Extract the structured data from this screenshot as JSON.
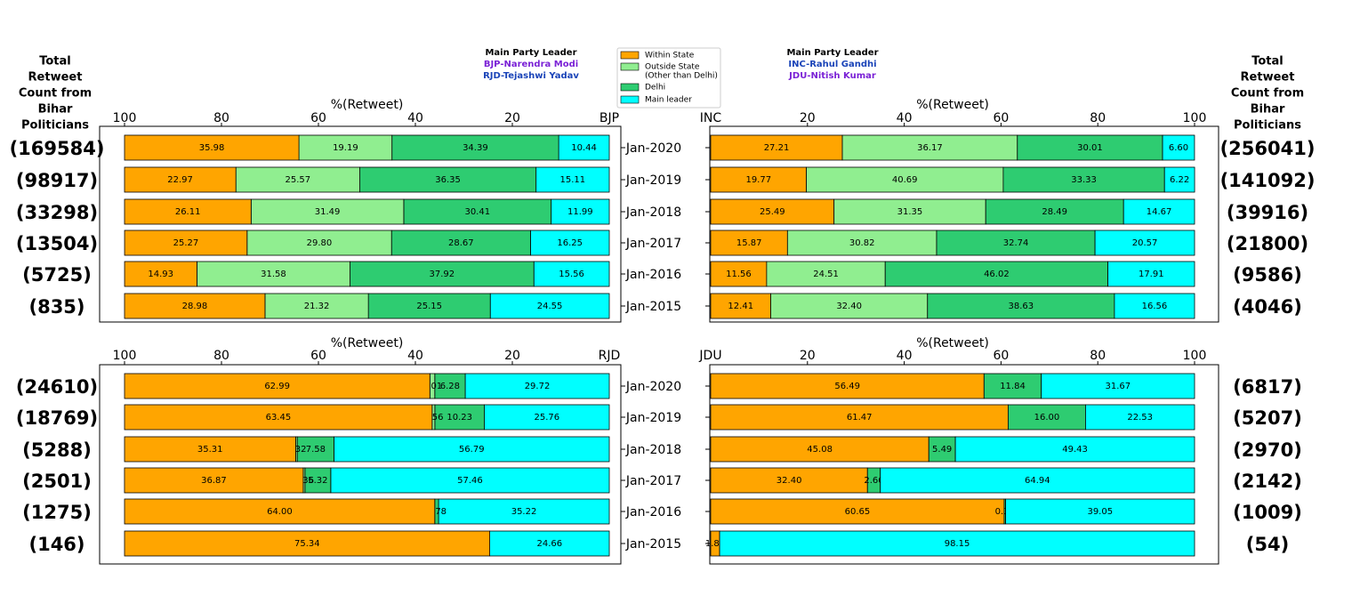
{
  "header": {
    "left_title": [
      "Total",
      "Retweet",
      "Count from",
      "Bihar",
      "Politicians"
    ],
    "right_title": [
      "Total",
      "Retweet",
      "Count from",
      "Bihar",
      "Politicians"
    ],
    "left_leader": {
      "heading": "Main Party Leader",
      "lines": [
        {
          "text": "BJP-Narendra Modi",
          "color": "#7b22d6"
        },
        {
          "text": "RJD-Tejashwi Yadav",
          "color": "#1a44b8"
        }
      ]
    },
    "right_leader": {
      "heading": "Main Party Leader",
      "lines": [
        {
          "text": "INC-Rahul Gandhi",
          "color": "#1a44b8"
        },
        {
          "text": "JDU-Nitish Kumar",
          "color": "#7b22d6"
        }
      ]
    }
  },
  "legend": [
    {
      "label": "Within State",
      "color": "#ffa500"
    },
    {
      "label": "Outside State\n(Other than Delhi)",
      "color": "#90ee90"
    },
    {
      "label": "Delhi",
      "color": "#2ecc71"
    },
    {
      "label": "Main leader",
      "color": "#00ffff"
    }
  ],
  "chart_data": [
    {
      "type": "bar",
      "party": "BJP",
      "xlabel": "%(Retweet)",
      "ticks": [
        100,
        80,
        60,
        40,
        20
      ],
      "xlim": [
        100,
        0
      ],
      "direction": "reversed",
      "categories": [
        "Jan-2020",
        "Jan-2019",
        "Jan-2018",
        "Jan-2017",
        "Jan-2016",
        "Jan-2015"
      ],
      "totals": [
        "(169584)",
        "(98917)",
        "(33298)",
        "(13504)",
        "(5725)",
        "(835)"
      ],
      "series": [
        {
          "name": "Main leader",
          "color": "#00ffff",
          "values": [
            10.44,
            15.11,
            11.99,
            16.25,
            15.56,
            24.55
          ]
        },
        {
          "name": "Delhi",
          "color": "#2ecc71",
          "values": [
            34.39,
            36.35,
            30.41,
            28.67,
            37.92,
            25.15
          ]
        },
        {
          "name": "Outside State",
          "color": "#90ee90",
          "values": [
            19.19,
            25.57,
            31.49,
            29.8,
            31.58,
            21.32
          ]
        },
        {
          "name": "Within State",
          "color": "#ffa500",
          "values": [
            35.98,
            22.97,
            26.11,
            25.27,
            14.93,
            28.98
          ]
        }
      ]
    },
    {
      "type": "bar",
      "party": "INC",
      "xlabel": "%(Retweet)",
      "ticks": [
        20,
        40,
        60,
        80,
        100
      ],
      "xlim": [
        0,
        100
      ],
      "direction": "normal",
      "categories": [
        "Jan-2020",
        "Jan-2019",
        "Jan-2018",
        "Jan-2017",
        "Jan-2016",
        "Jan-2015"
      ],
      "totals": [
        "(256041)",
        "(141092)",
        "(39916)",
        "(21800)",
        "(9586)",
        "(4046)"
      ],
      "series": [
        {
          "name": "Within State",
          "color": "#ffa500",
          "values": [
            27.21,
            19.77,
            25.49,
            15.87,
            11.56,
            12.41
          ]
        },
        {
          "name": "Outside State",
          "color": "#90ee90",
          "values": [
            36.17,
            40.69,
            31.35,
            30.82,
            24.51,
            32.4
          ]
        },
        {
          "name": "Delhi",
          "color": "#2ecc71",
          "values": [
            30.01,
            33.33,
            28.49,
            32.74,
            46.02,
            38.63
          ]
        },
        {
          "name": "Main leader",
          "color": "#00ffff",
          "values": [
            6.6,
            6.22,
            14.67,
            20.57,
            17.91,
            16.56
          ]
        }
      ]
    },
    {
      "type": "bar",
      "party": "RJD",
      "xlabel": "%(Retweet)",
      "ticks": [
        100,
        80,
        60,
        40,
        20
      ],
      "xlim": [
        100,
        0
      ],
      "direction": "reversed",
      "categories": [
        "Jan-2020",
        "Jan-2019",
        "Jan-2018",
        "Jan-2017",
        "Jan-2016",
        "Jan-2015"
      ],
      "totals": [
        "(24610)",
        "(18769)",
        "(5288)",
        "(2501)",
        "(1275)",
        "(146)"
      ],
      "series": [
        {
          "name": "Main leader",
          "color": "#00ffff",
          "values": [
            29.72,
            25.76,
            56.79,
            57.46,
            35.22,
            24.66
          ]
        },
        {
          "name": "Delhi",
          "color": "#2ecc71",
          "values": [
            6.28,
            10.23,
            7.58,
            5.32,
            0.78,
            0
          ]
        },
        {
          "name": "Outside State",
          "color": "#90ee90",
          "values": [
            1.01,
            0.56,
            0.32,
            0.36,
            0,
            0
          ]
        },
        {
          "name": "Within State",
          "color": "#ffa500",
          "values": [
            62.99,
            63.45,
            35.31,
            36.87,
            64.0,
            75.34
          ]
        }
      ]
    },
    {
      "type": "bar",
      "party": "JDU",
      "xlabel": "%(Retweet)",
      "ticks": [
        20,
        40,
        60,
        80,
        100
      ],
      "xlim": [
        0,
        100
      ],
      "direction": "normal",
      "categories": [
        "Jan-2020",
        "Jan-2019",
        "Jan-2018",
        "Jan-2017",
        "Jan-2016",
        "Jan-2015"
      ],
      "totals": [
        "(6817)",
        "(5207)",
        "(2970)",
        "(2142)",
        "(1009)",
        "(54)"
      ],
      "series": [
        {
          "name": "Within State",
          "color": "#ffa500",
          "values": [
            56.49,
            61.47,
            45.08,
            32.4,
            60.65,
            1.85
          ]
        },
        {
          "name": "Outside State",
          "color": "#90ee90",
          "values": [
            0,
            0,
            0,
            0,
            0,
            0
          ]
        },
        {
          "name": "Delhi",
          "color": "#2ecc71",
          "values": [
            11.84,
            16.0,
            5.49,
            2.66,
            0.3,
            0
          ]
        },
        {
          "name": "Main leader",
          "color": "#00ffff",
          "values": [
            31.67,
            22.53,
            49.43,
            64.94,
            39.05,
            98.15
          ]
        }
      ]
    }
  ]
}
